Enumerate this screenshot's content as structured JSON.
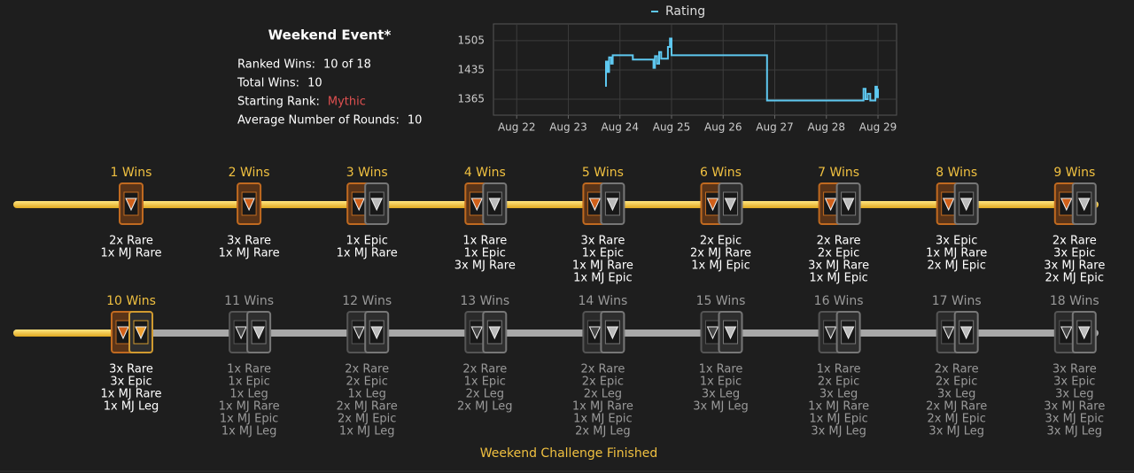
{
  "event": {
    "title": "Weekend Event*",
    "stats": [
      {
        "label": "Ranked Wins:",
        "value": "10 of 18"
      },
      {
        "label": "Total Wins:",
        "value": "10"
      },
      {
        "label": "Starting Rank:",
        "value": "Mythic"
      },
      {
        "label": "Average Number of Rounds:",
        "value": "10"
      }
    ]
  },
  "chart_data": {
    "type": "line",
    "x": [
      23.73,
      23.73,
      23.76,
      23.76,
      23.79,
      23.79,
      23.83,
      23.83,
      23.86,
      23.86,
      24.25,
      24.25,
      24.65,
      24.65,
      24.68,
      24.68,
      24.72,
      24.72,
      24.76,
      24.76,
      24.8,
      24.8,
      24.93,
      24.93,
      24.97,
      24.97,
      25.0,
      25.0,
      26.85,
      26.85,
      28.72,
      28.72,
      28.76,
      28.76,
      28.8,
      28.8,
      28.85,
      28.85,
      28.95,
      28.95,
      28.98,
      28.98,
      29.0,
      29.0
    ],
    "series": [
      {
        "name": "Rating",
        "color": "#5ec8f0",
        "values": [
          1395,
          1455,
          1455,
          1430,
          1430,
          1465,
          1465,
          1450,
          1450,
          1470,
          1470,
          1460,
          1460,
          1440,
          1440,
          1468,
          1468,
          1450,
          1450,
          1478,
          1478,
          1462,
          1462,
          1490,
          1490,
          1510,
          1510,
          1470,
          1470,
          1362,
          1362,
          1390,
          1390,
          1365,
          1365,
          1378,
          1378,
          1362,
          1362,
          1395,
          1395,
          1370,
          1370,
          1390
        ]
      }
    ],
    "xlim": [
      21.55,
      29.36
    ],
    "ylim": [
      1327,
      1545
    ],
    "xticks": [
      {
        "value": 22,
        "label": "Aug 22"
      },
      {
        "value": 23,
        "label": "Aug 23"
      },
      {
        "value": 24,
        "label": "Aug 24"
      },
      {
        "value": 25,
        "label": "Aug 25"
      },
      {
        "value": 26,
        "label": "Aug 26"
      },
      {
        "value": 27,
        "label": "Aug 27"
      },
      {
        "value": 28,
        "label": "Aug 28"
      },
      {
        "value": 29,
        "label": "Aug 29"
      }
    ],
    "yticks": [
      1365,
      1435,
      1505
    ],
    "grid": true,
    "legend": "top"
  },
  "tiers": [
    {
      "label": "1 Wins",
      "rewards": [
        "2x Rare",
        "1x MJ Rare"
      ]
    },
    {
      "label": "2 Wins",
      "rewards": [
        "3x Rare",
        "1x MJ Rare"
      ]
    },
    {
      "label": "3 Wins",
      "rewards": [
        "1x Epic",
        "1x MJ Rare"
      ]
    },
    {
      "label": "4 Wins",
      "rewards": [
        "1x Rare",
        "1x Epic",
        "3x MJ Rare"
      ]
    },
    {
      "label": "5 Wins",
      "rewards": [
        "3x Rare",
        "1x Epic",
        "1x MJ Rare",
        "1x MJ Epic"
      ]
    },
    {
      "label": "6 Wins",
      "rewards": [
        "2x Epic",
        "2x MJ Rare",
        "1x MJ Epic"
      ]
    },
    {
      "label": "7 Wins",
      "rewards": [
        "2x Rare",
        "2x Epic",
        "3x MJ Rare",
        "1x MJ Epic"
      ]
    },
    {
      "label": "8 Wins",
      "rewards": [
        "3x Epic",
        "1x MJ Rare",
        "2x MJ Epic"
      ]
    },
    {
      "label": "9 Wins",
      "rewards": [
        "2x Rare",
        "3x Epic",
        "3x MJ Rare",
        "2x MJ Epic"
      ]
    },
    {
      "label": "10 Wins",
      "rewards": [
        "3x Rare",
        "3x Epic",
        "1x MJ Rare",
        "1x MJ Leg"
      ]
    },
    {
      "label": "11 Wins",
      "rewards": [
        "1x Rare",
        "1x Epic",
        "1x Leg",
        "1x MJ Rare",
        "1x MJ Epic",
        "1x MJ Leg"
      ]
    },
    {
      "label": "12 Wins",
      "rewards": [
        "2x Rare",
        "2x Epic",
        "1x Leg",
        "2x MJ Rare",
        "2x MJ Epic",
        "1x MJ Leg"
      ]
    },
    {
      "label": "13 Wins",
      "rewards": [
        "2x Rare",
        "1x Epic",
        "2x Leg",
        "2x MJ Leg"
      ]
    },
    {
      "label": "14 Wins",
      "rewards": [
        "2x Rare",
        "2x Epic",
        "2x Leg",
        "1x MJ Rare",
        "1x MJ Epic",
        "2x MJ Leg"
      ]
    },
    {
      "label": "15 Wins",
      "rewards": [
        "1x Rare",
        "1x Epic",
        "3x Leg",
        "3x MJ Leg"
      ]
    },
    {
      "label": "16 Wins",
      "rewards": [
        "1x Rare",
        "2x Epic",
        "3x Leg",
        "1x MJ Rare",
        "1x MJ Epic",
        "3x MJ Leg"
      ]
    },
    {
      "label": "17 Wins",
      "rewards": [
        "2x Rare",
        "2x Epic",
        "3x Leg",
        "2x MJ Rare",
        "2x MJ Epic",
        "3x MJ Leg"
      ]
    },
    {
      "label": "18 Wins",
      "rewards": [
        "3x Rare",
        "3x Epic",
        "3x Leg",
        "3x MJ Rare",
        "3x MJ Epic",
        "3x MJ Leg"
      ]
    }
  ],
  "footer": "Weekend Challenge Finished"
}
